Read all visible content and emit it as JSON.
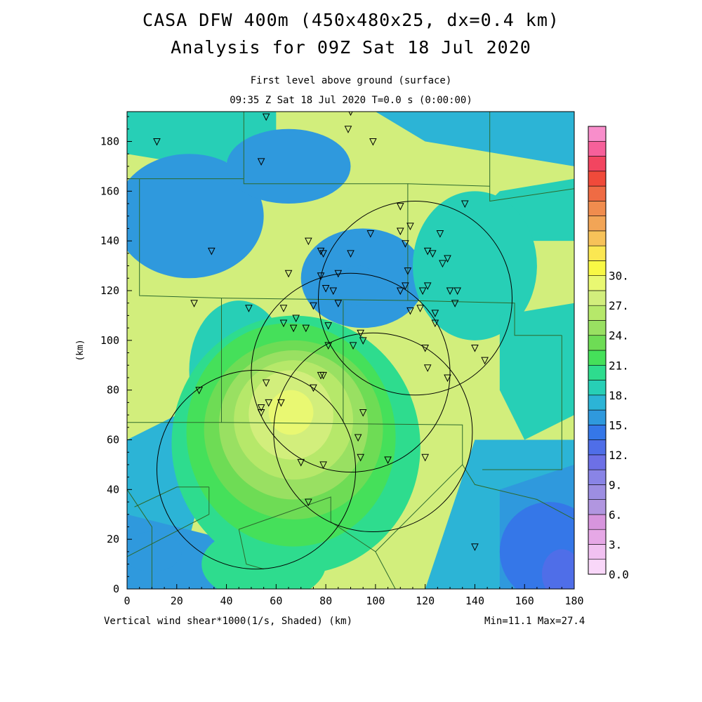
{
  "header": {
    "title_line1": "CASA DFW 400m (450x480x25, dx=0.4 km)",
    "title_line2": "Analysis for 09Z Sat 18 Jul 2020",
    "subtitle_line1": "First level above ground (surface)",
    "subtitle_line2": "09:35 Z Sat 18 Jul 2020    T=0.0 s (0:00:00)"
  },
  "footer": {
    "variable_label": "Vertical wind shear*1000(1/s, Shaded)  (km)",
    "minmax": "Min=11.1 Max=27.4"
  },
  "chart_data": {
    "type": "heatmap",
    "title": "CASA DFW 400m (450x480x25, dx=0.4 km)",
    "subtitle": "Analysis for 09Z Sat 18 Jul 2020",
    "field": "Vertical wind shear*1000(1/s, Shaded)",
    "level": "First level above ground (surface)",
    "valid_time": "09:35 Z Sat 18 Jul 2020",
    "xlabel": "(km)",
    "ylabel": "(km)",
    "xlim": [
      0,
      180
    ],
    "ylim": [
      0,
      192
    ],
    "x_ticks": [
      0,
      20,
      40,
      60,
      80,
      100,
      120,
      140,
      160,
      180
    ],
    "y_ticks": [
      0,
      20,
      40,
      60,
      80,
      100,
      120,
      140,
      160,
      180
    ],
    "min": 11.1,
    "max": 27.4,
    "colorbar": {
      "tick_labels": [
        "0.0",
        "3.",
        "6.",
        "9.",
        "12.",
        "15.",
        "18.",
        "21.",
        "24.",
        "27.",
        "30."
      ],
      "tick_values": [
        0,
        3,
        6,
        9,
        12,
        15,
        18,
        21,
        24,
        27,
        30
      ],
      "step": 1.5,
      "colors": [
        "#f9d7f9",
        "#f1c1f1",
        "#e6a8e6",
        "#d795dd",
        "#b196e0",
        "#9d8ee2",
        "#8984e6",
        "#6d70e6",
        "#4f6ee8",
        "#3577e8",
        "#2f99dd",
        "#2cb4d6",
        "#27cfb6",
        "#2edc8e",
        "#45e05a",
        "#6edc55",
        "#99e062",
        "#b6e86a",
        "#d2ee7c",
        "#e9f872",
        "#f8f845",
        "#fbe752",
        "#f7c259",
        "#f2a556",
        "#f08c4e",
        "#ef6b44",
        "#f04a3a",
        "#f24560",
        "#f6609a",
        "#f88ecb"
      ]
    },
    "field_features": [
      {
        "kind": "maximum",
        "x": 66,
        "y": 71,
        "value": 27.4
      },
      {
        "kind": "minimum",
        "x": 175,
        "y": 6,
        "value": 11.1
      }
    ],
    "radar_rings": [
      {
        "cx": 116,
        "cy": 117,
        "r": 39
      },
      {
        "cx": 90,
        "cy": 87,
        "r": 40
      },
      {
        "cx": 99,
        "cy": 63,
        "r": 40
      },
      {
        "cx": 52,
        "cy": 48,
        "r": 40
      }
    ],
    "stations": [
      [
        12,
        180
      ],
      [
        56,
        190
      ],
      [
        54,
        172
      ],
      [
        90,
        192
      ],
      [
        89,
        185
      ],
      [
        99,
        180
      ],
      [
        34,
        136
      ],
      [
        110,
        154
      ],
      [
        136,
        155
      ],
      [
        98,
        143
      ],
      [
        114,
        146
      ],
      [
        110,
        144
      ],
      [
        126,
        143
      ],
      [
        112,
        139
      ],
      [
        73,
        140
      ],
      [
        78,
        136
      ],
      [
        79,
        135
      ],
      [
        90,
        135
      ],
      [
        121,
        136
      ],
      [
        123,
        135
      ],
      [
        127,
        131
      ],
      [
        129,
        133
      ],
      [
        65,
        127
      ],
      [
        78,
        126
      ],
      [
        85,
        127
      ],
      [
        113,
        128
      ],
      [
        80,
        121
      ],
      [
        112,
        122
      ],
      [
        110,
        120
      ],
      [
        119,
        120
      ],
      [
        121,
        122
      ],
      [
        130,
        120
      ],
      [
        133,
        120
      ],
      [
        83,
        120
      ],
      [
        27,
        115
      ],
      [
        49,
        113
      ],
      [
        63,
        113
      ],
      [
        75,
        114
      ],
      [
        85,
        115
      ],
      [
        132,
        115
      ],
      [
        68,
        109
      ],
      [
        124,
        111
      ],
      [
        114,
        112
      ],
      [
        118,
        113
      ],
      [
        63,
        107
      ],
      [
        67,
        105
      ],
      [
        72,
        105
      ],
      [
        81,
        106
      ],
      [
        124,
        107
      ],
      [
        94,
        103
      ],
      [
        91,
        98
      ],
      [
        95,
        100
      ],
      [
        81,
        98
      ],
      [
        120,
        97
      ],
      [
        140,
        97
      ],
      [
        144,
        92
      ],
      [
        121,
        89
      ],
      [
        129,
        85
      ],
      [
        29,
        80
      ],
      [
        56,
        83
      ],
      [
        78,
        86
      ],
      [
        79,
        86
      ],
      [
        75,
        81
      ],
      [
        54,
        73
      ],
      [
        54,
        71
      ],
      [
        57,
        75
      ],
      [
        62,
        75
      ],
      [
        95,
        71
      ],
      [
        93,
        61
      ],
      [
        94,
        53
      ],
      [
        105,
        52
      ],
      [
        120,
        53
      ],
      [
        70,
        51
      ],
      [
        79,
        50
      ],
      [
        73,
        35
      ],
      [
        140,
        17
      ]
    ]
  }
}
